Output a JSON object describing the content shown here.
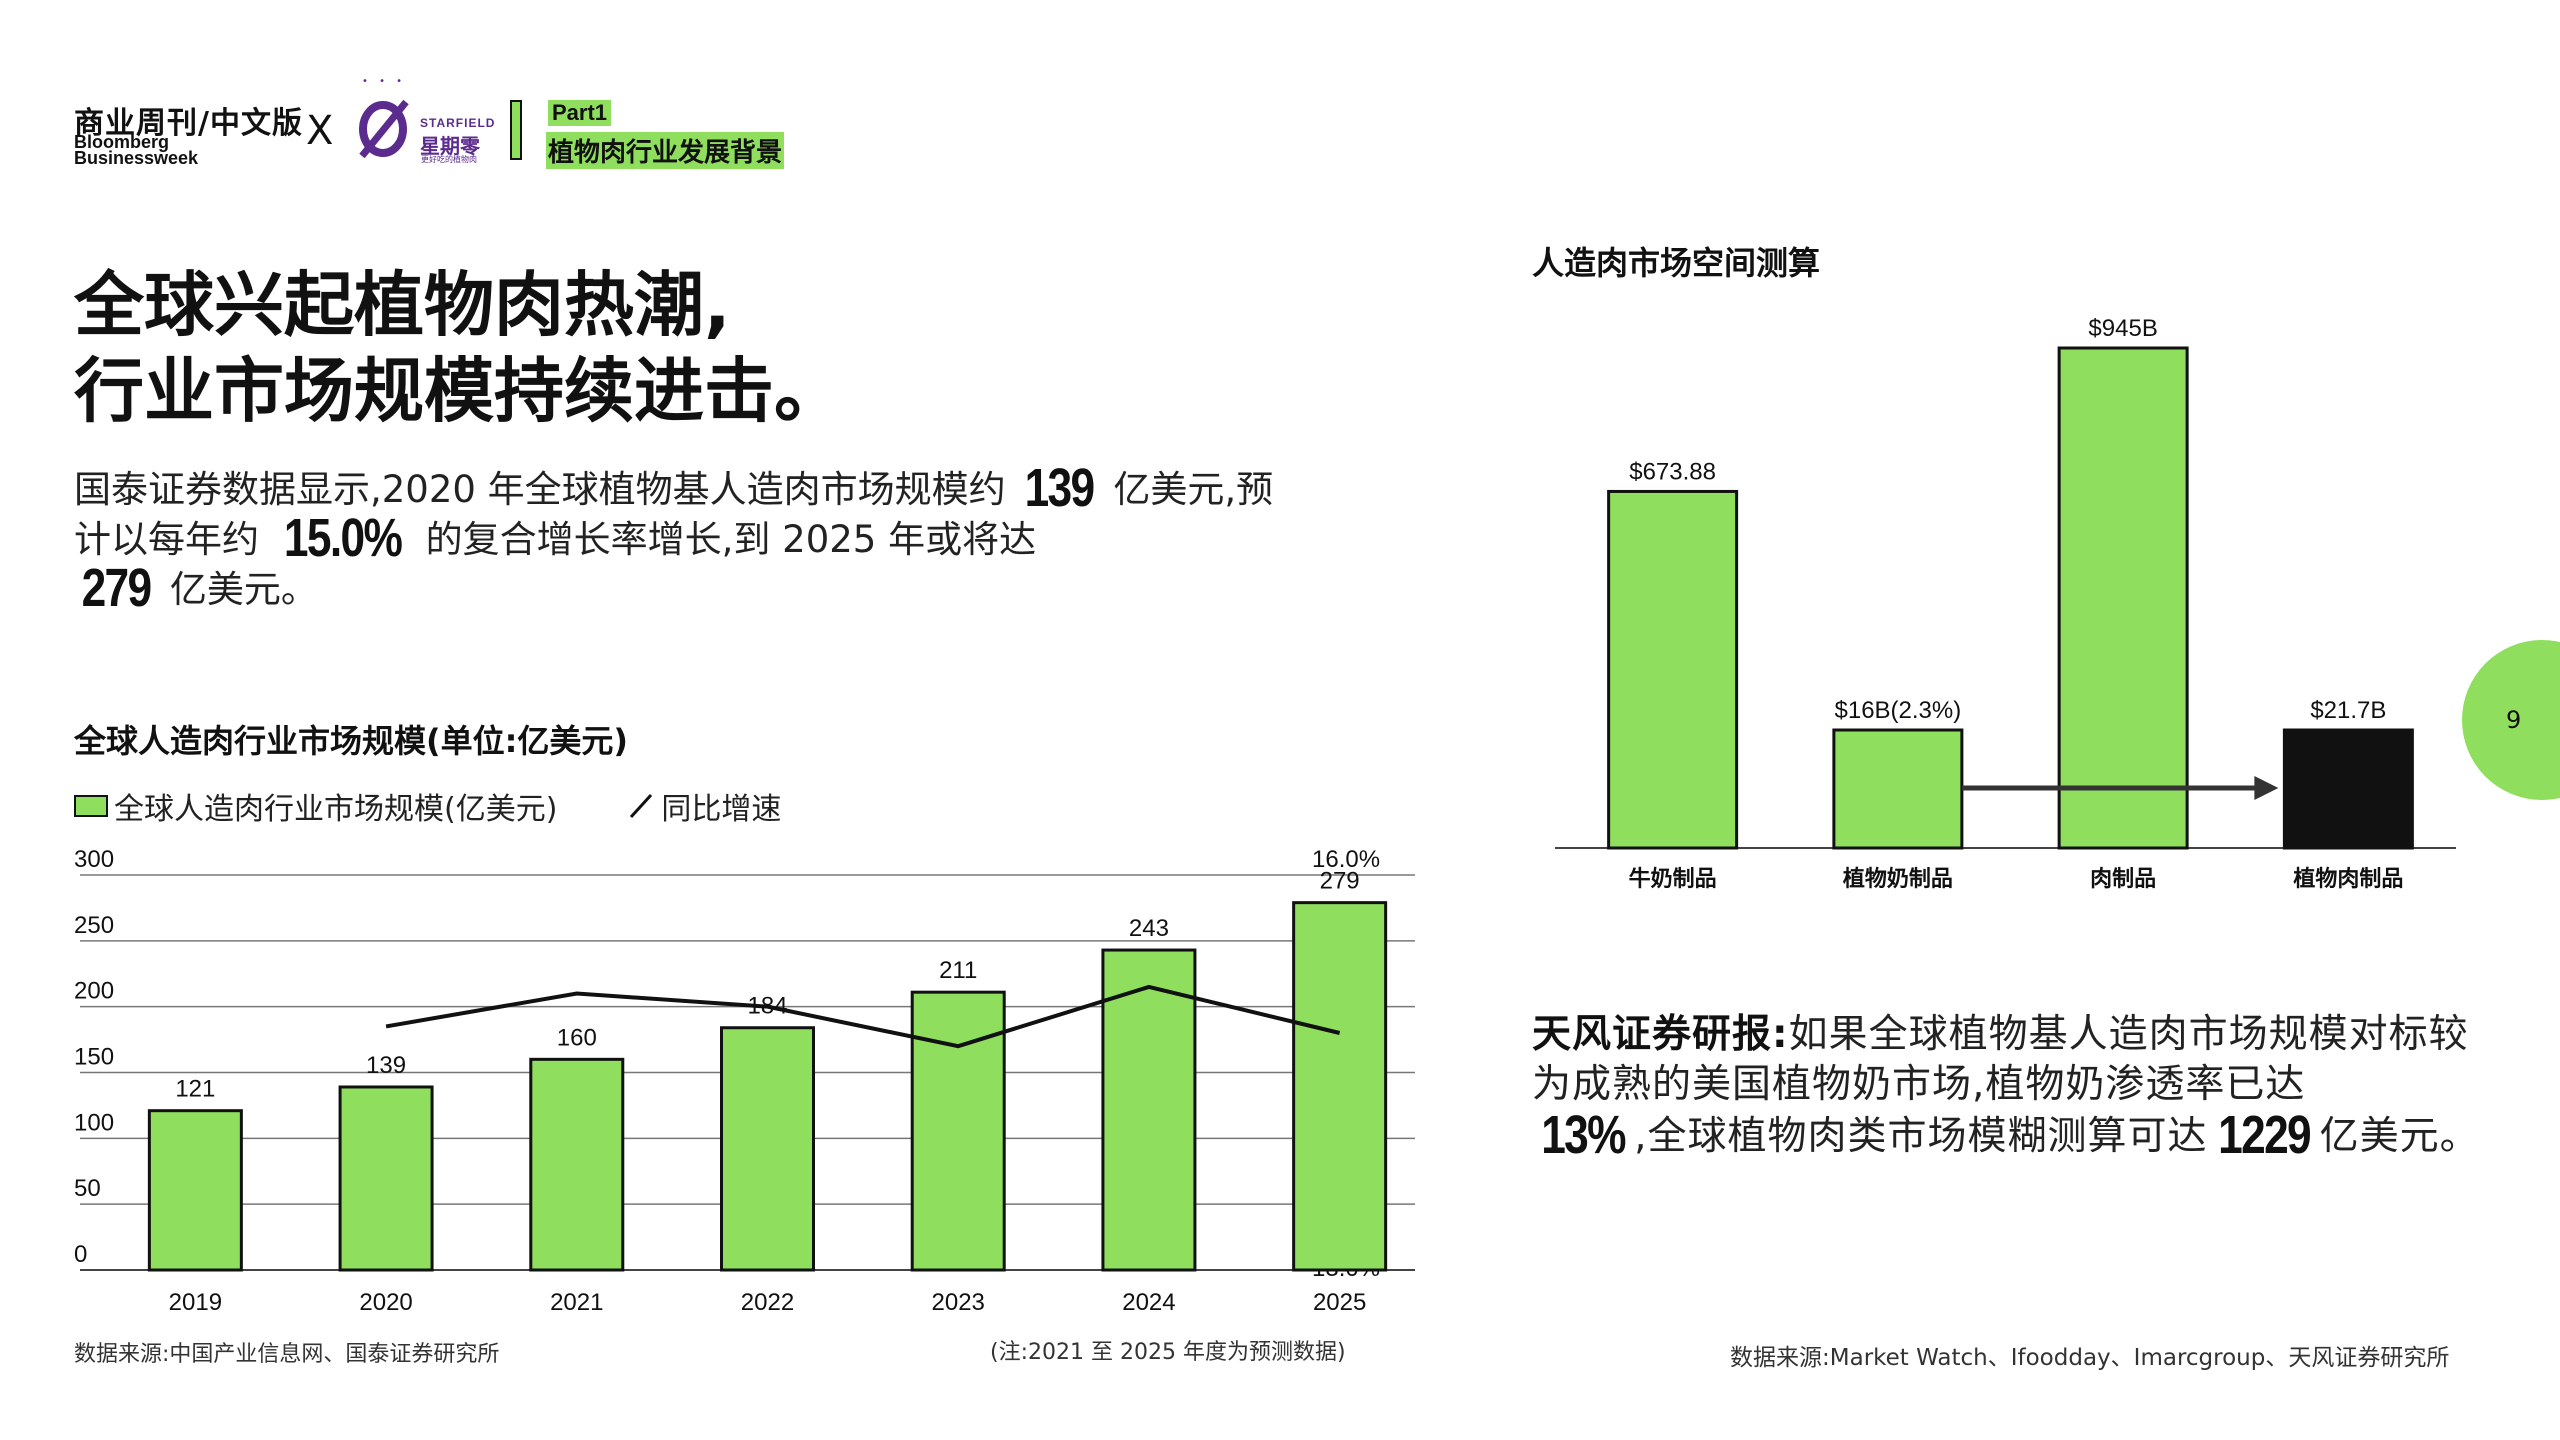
{
  "header": {
    "brand_cn": "商业周刊/中文版",
    "brand_en_line1": "Bloomberg",
    "brand_en_line2": "Businessweek",
    "x_mark": "X",
    "partner_en": "STARFIELD",
    "partner_cn": "星期零",
    "partner_sub": "更好吃的植物肉",
    "part_label": "Part1",
    "part_title": "植物肉行业发展背景"
  },
  "headline": {
    "line1": "全球兴起植物肉热潮,",
    "line2": "行业市场规模持续进击。"
  },
  "intro": {
    "t1": "国泰证券数据显示,2020 年全球植物基人造肉市场规模约 ",
    "n1": "139",
    "t2": " 亿美元,预计以每年约 ",
    "n2": "15.0%",
    "t3": " 的复合增长率增长,到 2025 年或将达 ",
    "n3": "279",
    "t4": " 亿美元。"
  },
  "chart_data": [
    {
      "type": "bar",
      "title": "全球人造肉行业市场规模(单位:亿美元)",
      "categories": [
        "2019",
        "2020",
        "2021",
        "2022",
        "2023",
        "2024",
        "2025"
      ],
      "series": [
        {
          "name": "全球人造肉行业市场规模(亿美元)",
          "type": "bar",
          "axis": "left",
          "values": [
            121,
            139,
            160,
            184,
            211,
            243,
            279
          ]
        },
        {
          "name": "同比增速",
          "type": "line",
          "axis": "right",
          "values": [
            null,
            14.85,
            15.1,
            15.0,
            14.7,
            15.15,
            14.8
          ]
        }
      ],
      "ylim_left": [
        0,
        300
      ],
      "yticks_left": [
        "300",
        "250",
        "200",
        "150",
        "100",
        "50",
        "0"
      ],
      "ylim_right": [
        13.0,
        16.0
      ],
      "yticks_right": [
        "16.0%",
        "15.5%",
        "15.0%",
        "14.5%",
        "14.0%",
        "13.5%",
        "13.0%"
      ],
      "grid": true,
      "legend": "top-left",
      "bar_color": "#8fde5d"
    },
    {
      "type": "bar",
      "title": "人造肉市场空间测算",
      "categories": [
        "牛奶制品",
        "植物奶制品",
        "肉制品",
        "植物肉制品"
      ],
      "values": [
        673.88,
        16,
        945,
        21.7
      ],
      "labels": [
        "$673.88",
        "$16B(2.3%)",
        "$945B",
        "$21.7B"
      ],
      "colors": [
        "#8fde5d",
        "#8fde5d",
        "#8fde5d",
        "#111111"
      ],
      "grid": false
    }
  ],
  "left_chart": {
    "title": "全球人造肉行业市场规模(单位:亿美元)",
    "legend_bar": "全球人造肉行业市场规模(亿美元)",
    "legend_line": "同比增速",
    "source": "数据来源:中国产业信息网、国泰证券研究所",
    "note": "(注:2021 至 2025 年度为预测数据)"
  },
  "right_chart": {
    "title": "人造肉市场空间测算"
  },
  "tianfeng": {
    "lead": "天风证券研报:",
    "t1": "如果全球植物基人造肉市场规模对标较为成熟的美国植物奶市场,植物奶渗透率已达",
    "n1": "13%",
    "t2": ",全球植物肉类市场模糊测算可达",
    "n2": "1229",
    "t3": "亿美元。",
    "source": "数据来源:Market Watch、Ifoodday、Imarcgroup、天风证券研究所"
  },
  "page_number": "9",
  "colors": {
    "accent": "#8fde5d",
    "purple": "#5b2c8e",
    "text": "#111111"
  }
}
